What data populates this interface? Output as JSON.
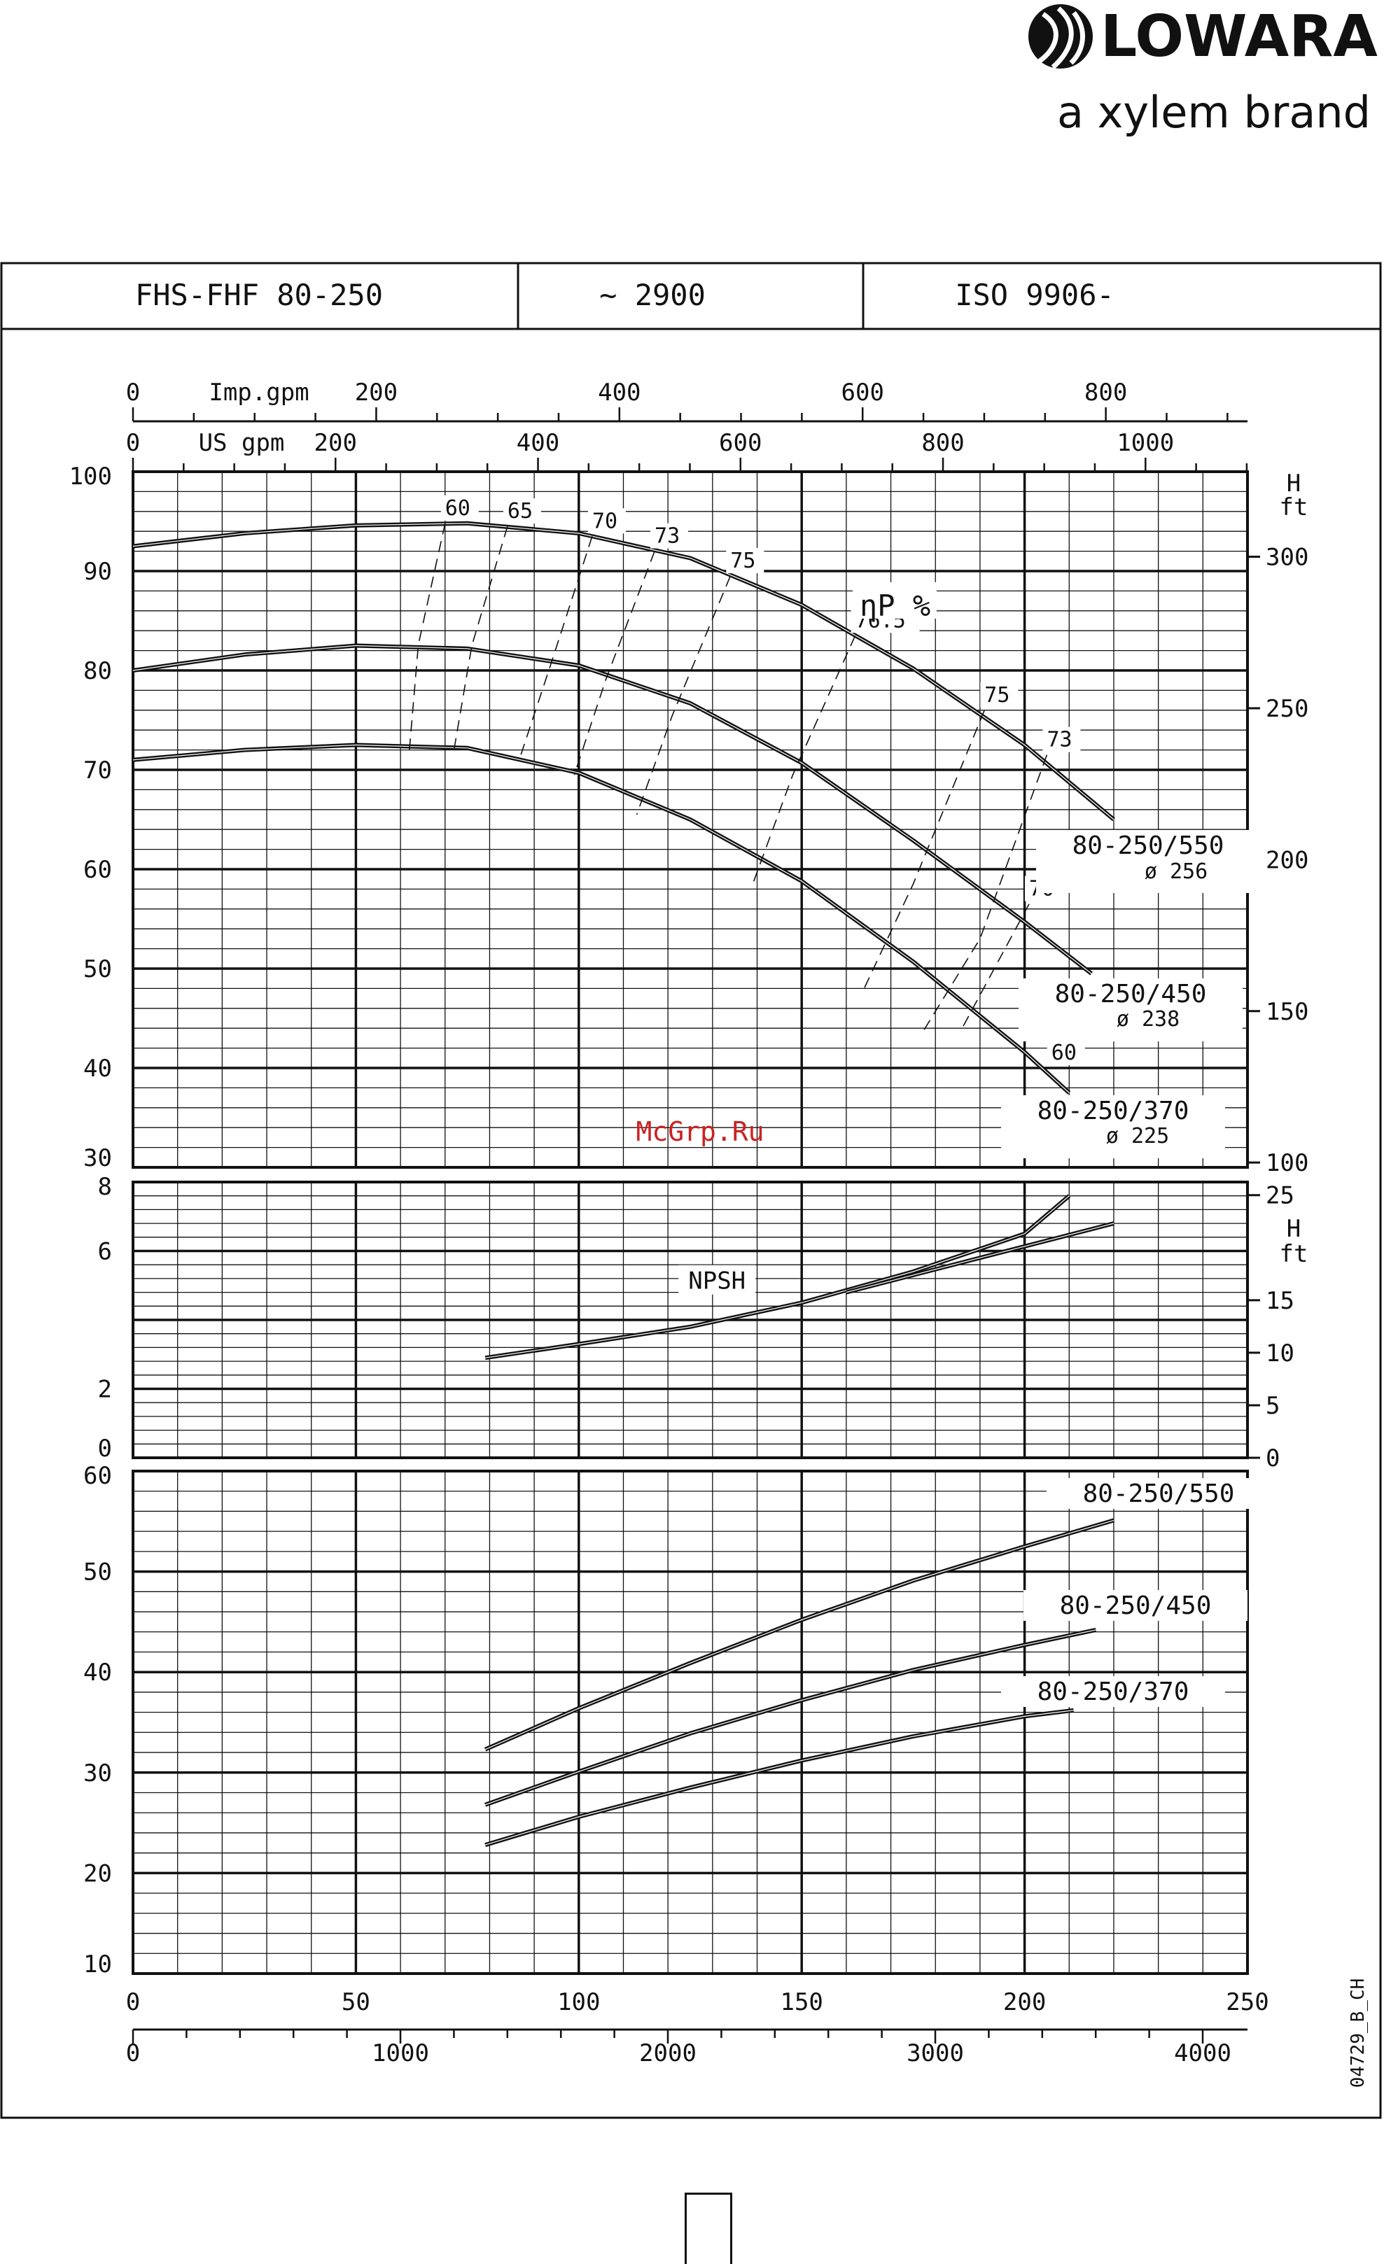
{
  "header": {
    "brand_name": "LOWARA",
    "brand_tagline": "a xylem brand"
  },
  "title_block": {
    "model": "FHS-FHF 80-250",
    "speed": "~ 2900",
    "standard": "ISO 9906-"
  },
  "watermark": "McGrp.Ru",
  "drawing_code": "04729_B_CH",
  "chart_data": [
    {
      "type": "line",
      "name": "head",
      "x_unit": "m³/h",
      "ylim": [
        30,
        100
      ],
      "y_ticks": [
        "100",
        "90",
        "80",
        "70",
        "60",
        "50",
        "40",
        "30"
      ],
      "y2_label": [
        "H",
        "ft"
      ],
      "y2_ticks": [
        {
          "label": "300",
          "value": 91.44
        },
        {
          "label": "250",
          "value": 76.2
        },
        {
          "label": "200",
          "value": 60.96
        },
        {
          "label": "150",
          "value": 45.72
        },
        {
          "label": "100",
          "value": 30.48
        }
      ],
      "top_axes": [
        {
          "label": "Imp.gpm",
          "ticks": [
            "0",
            "200",
            "400",
            "600",
            "800"
          ],
          "factor": 3.666
        },
        {
          "label": "US gpm",
          "ticks": [
            "0",
            "200",
            "400",
            "600",
            "800",
            "1000"
          ],
          "factor": 4.403
        }
      ],
      "efficiency_label": "ηP %",
      "series": [
        {
          "name": "80-250/550",
          "diameter": "ø 256",
          "points": [
            [
              0,
              92.5
            ],
            [
              25,
              93.8
            ],
            [
              50,
              94.6
            ],
            [
              75,
              94.8
            ],
            [
              100,
              93.8
            ],
            [
              125,
              91.3
            ],
            [
              150,
              86.6
            ],
            [
              175,
              80.2
            ],
            [
              200,
              72.5
            ],
            [
              220,
              65.0
            ]
          ]
        },
        {
          "name": "80-250/450",
          "diameter": "ø 238",
          "points": [
            [
              0,
              80.0
            ],
            [
              25,
              81.6
            ],
            [
              50,
              82.5
            ],
            [
              75,
              82.2
            ],
            [
              100,
              80.5
            ],
            [
              125,
              76.7
            ],
            [
              150,
              70.7
            ],
            [
              175,
              62.9
            ],
            [
              200,
              54.7
            ],
            [
              215,
              49.5
            ]
          ]
        },
        {
          "name": "80-250/370",
          "diameter": "ø 225",
          "points": [
            [
              0,
              71.0
            ],
            [
              25,
              72.0
            ],
            [
              50,
              72.5
            ],
            [
              75,
              72.2
            ],
            [
              100,
              69.7
            ],
            [
              125,
              65.0
            ],
            [
              150,
              58.8
            ],
            [
              175,
              50.7
            ],
            [
              200,
              41.6
            ],
            [
              210,
              37.5
            ]
          ]
        }
      ],
      "efficiency_lines": [
        {
          "label": "60",
          "points": [
            [
              70,
              94.8
            ],
            [
              64,
              82.6
            ],
            [
              62,
              72.0
            ]
          ]
        },
        {
          "label": "65",
          "points": [
            [
              84,
              94.5
            ],
            [
              76,
              82.5
            ],
            [
              72,
              72.0
            ]
          ]
        },
        {
          "label": "70",
          "points": [
            [
              103,
              93.5
            ],
            [
              94,
              81.0
            ],
            [
              87,
              71.5
            ]
          ]
        },
        {
          "label": "73",
          "points": [
            [
              117,
              92.0
            ],
            [
              106,
              79.0
            ],
            [
              99,
              69.5
            ]
          ]
        },
        {
          "label": "75",
          "points": [
            [
              134,
              89.5
            ],
            [
              121,
              75.5
            ],
            [
              113,
              65.5
            ]
          ]
        },
        {
          "label": "76.5",
          "points": [
            [
              162,
              83.5
            ],
            [
              148,
              69.5
            ],
            [
              139,
              58.5
            ]
          ]
        },
        {
          "label": "75",
          "points": [
            [
              191,
              76.0
            ],
            [
              175,
              58.5
            ],
            [
              164,
              48.0
            ]
          ]
        },
        {
          "label": "73",
          "points": [
            [
              205,
              71.5
            ],
            [
              190,
              53.0
            ],
            [
              177,
              43.5
            ]
          ]
        },
        {
          "label": "70",
          "points": [
            [
              201,
              56.5
            ],
            [
              186,
              44.0
            ]
          ]
        },
        {
          "label": "65",
          "points": [
            [
              201,
              42.5
            ]
          ]
        },
        {
          "label": "60",
          "points": [
            [
              206,
              40.0
            ]
          ]
        }
      ]
    },
    {
      "type": "line",
      "name": "npsh",
      "ylim": [
        0,
        8
      ],
      "y_ticks": [
        "8",
        "6",
        "2",
        "0"
      ],
      "y2_label": [
        "H",
        "ft"
      ],
      "y2_ticks": [
        {
          "label": "25",
          "value": 7.62
        },
        {
          "label": "15",
          "value": 4.572
        },
        {
          "label": "10",
          "value": 3.048
        },
        {
          "label": "5",
          "value": 1.524
        },
        {
          "label": "0",
          "value": 0
        }
      ],
      "series": [
        {
          "name": "NPSH",
          "points": [
            [
              79,
              2.9
            ],
            [
              100,
              3.3
            ],
            [
              125,
              3.8
            ],
            [
              150,
              4.5
            ],
            [
              175,
              5.4
            ],
            [
              200,
              6.5
            ],
            [
              210,
              7.6
            ]
          ]
        },
        {
          "name": "",
          "points": [
            [
              160,
              4.8
            ],
            [
              190,
              5.8
            ],
            [
              220,
              6.8
            ]
          ]
        }
      ]
    },
    {
      "type": "line",
      "name": "power",
      "ylim": [
        10,
        60
      ],
      "y_ticks": [
        "60",
        "50",
        "40",
        "30",
        "20",
        "10"
      ],
      "x_ticks": [
        "0",
        "50",
        "100",
        "150",
        "200",
        "250"
      ],
      "x2_ticks": [
        "0",
        "1000",
        "2000",
        "3000",
        "4000"
      ],
      "x2_factor": 16.67,
      "series": [
        {
          "name": "80-250/550",
          "points": [
            [
              79,
              32.3
            ],
            [
              100,
              36.4
            ],
            [
              125,
              40.9
            ],
            [
              150,
              45.2
            ],
            [
              175,
              49.1
            ],
            [
              200,
              52.5
            ],
            [
              220,
              55.1
            ]
          ]
        },
        {
          "name": "80-250/450",
          "points": [
            [
              79,
              26.8
            ],
            [
              100,
              30.1
            ],
            [
              125,
              33.9
            ],
            [
              150,
              37.2
            ],
            [
              175,
              40.2
            ],
            [
              200,
              42.7
            ],
            [
              216,
              44.2
            ]
          ]
        },
        {
          "name": "80-250/370",
          "points": [
            [
              79,
              22.8
            ],
            [
              100,
              25.6
            ],
            [
              125,
              28.5
            ],
            [
              150,
              31.2
            ],
            [
              175,
              33.6
            ],
            [
              200,
              35.6
            ],
            [
              211,
              36.2
            ]
          ]
        }
      ]
    }
  ]
}
